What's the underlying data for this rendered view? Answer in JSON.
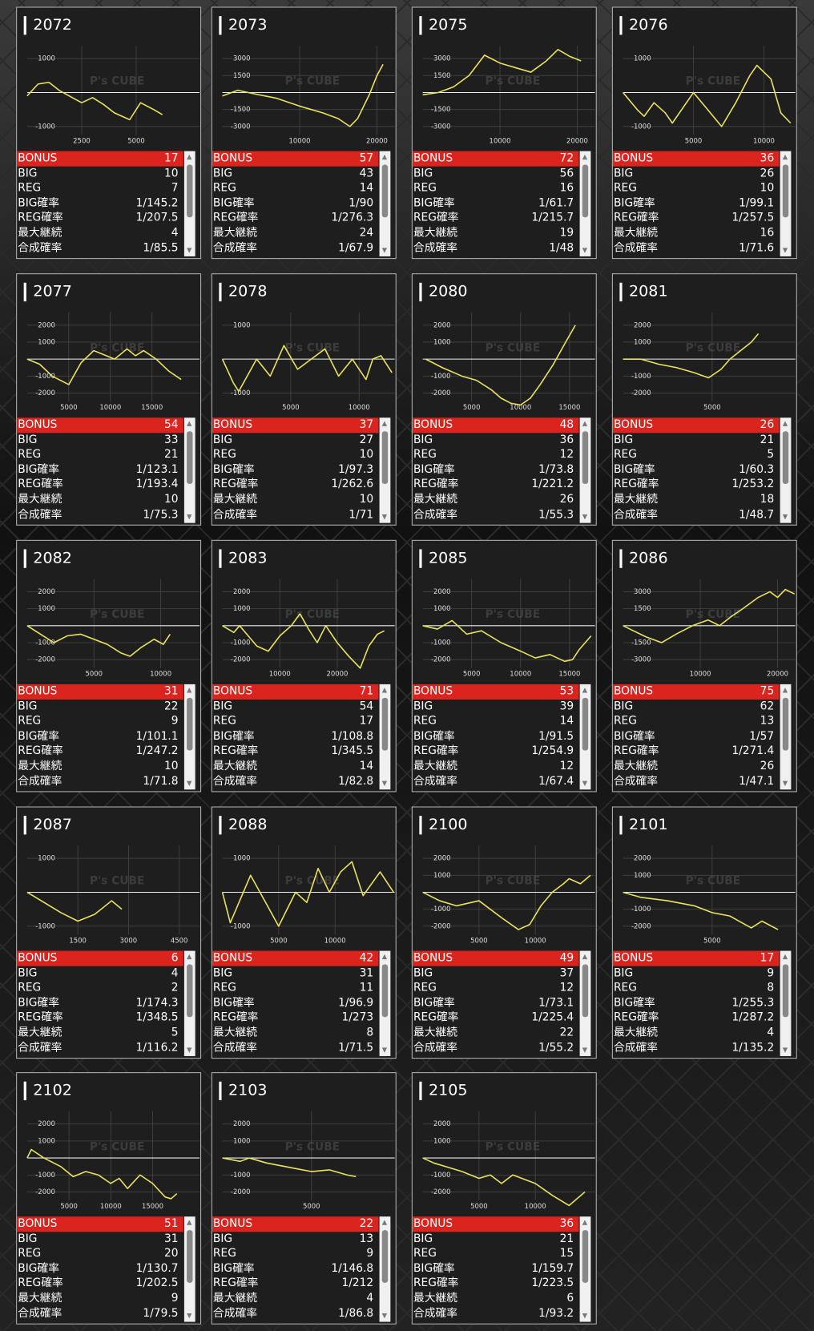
{
  "watermark": "P's CUBE",
  "row_labels": [
    "BONUS",
    "BIG",
    "REG",
    "BIG確率",
    "REG確率",
    "最大継続",
    "合成確率"
  ],
  "cards": [
    {
      "id": "2072",
      "chart": {
        "type": "line",
        "xlim": [
          0,
          7900
        ],
        "ylim": [
          -1250,
          1375
        ],
        "xticks": [
          2500,
          5000
        ],
        "yticks": [
          1000,
          -1000
        ],
        "x": [
          0,
          500,
          1000,
          1500,
          2500,
          3000,
          3500,
          4000,
          4700,
          5200,
          5800,
          6200
        ],
        "values": [
          -100,
          250,
          300,
          50,
          -300,
          -150,
          -350,
          -600,
          -800,
          -300,
          -500,
          -650
        ]
      },
      "stats": [
        17,
        10,
        7,
        "1/145.2",
        "1/207.5",
        4,
        "1/85.5"
      ]
    },
    {
      "id": "2073",
      "chart": {
        "type": "line",
        "xlim": [
          0,
          22300
        ],
        "ylim": [
          -3750,
          4125
        ],
        "xticks": [
          10000,
          20000
        ],
        "yticks": [
          3000,
          1500,
          -1500,
          -3000
        ],
        "x": [
          0,
          2000,
          4000,
          7000,
          10000,
          13000,
          15000,
          16500,
          17500,
          19000,
          20000,
          20800
        ],
        "values": [
          -300,
          200,
          -100,
          -500,
          -1200,
          -1800,
          -2300,
          -3000,
          -2300,
          -200,
          1500,
          2500
        ]
      },
      "stats": [
        57,
        43,
        14,
        "1/90",
        "1/276.3",
        24,
        "1/67.9"
      ]
    },
    {
      "id": "2075",
      "chart": {
        "type": "line",
        "xlim": [
          0,
          22300
        ],
        "ylim": [
          -3750,
          4125
        ],
        "xticks": [
          10000,
          20000
        ],
        "yticks": [
          3000,
          1500,
          -1500,
          -3000
        ],
        "x": [
          0,
          2000,
          4000,
          6000,
          8000,
          10000,
          12000,
          14000,
          16000,
          17500,
          19000,
          20500
        ],
        "values": [
          -200,
          0,
          500,
          1500,
          3300,
          2600,
          2200,
          1800,
          2800,
          3800,
          3200,
          2800
        ]
      },
      "stats": [
        72,
        56,
        16,
        "1/61.7",
        "1/215.7",
        19,
        "1/48"
      ]
    },
    {
      "id": "2076",
      "chart": {
        "type": "line",
        "xlim": [
          0,
          12230
        ],
        "ylim": [
          -1250,
          1375
        ],
        "xticks": [
          5000,
          10000
        ],
        "yticks": [
          1000,
          -1000
        ],
        "x": [
          0,
          1000,
          1500,
          2200,
          3000,
          3500,
          5000,
          6000,
          7000,
          8000,
          9000,
          9500,
          10500,
          11200,
          11900
        ],
        "values": [
          0,
          -500,
          -700,
          -300,
          -600,
          -900,
          0,
          -500,
          -1000,
          -300,
          500,
          800,
          400,
          -600,
          -900
        ]
      },
      "stats": [
        36,
        26,
        10,
        "1/99.1",
        "1/257.5",
        16,
        "1/71.6"
      ]
    },
    {
      "id": "2077",
      "chart": {
        "type": "line",
        "xlim": [
          0,
          20700
        ],
        "ylim": [
          -2500,
          2750
        ],
        "xticks": [
          5000,
          10000,
          15000
        ],
        "yticks": [
          2000,
          1000,
          -1000,
          -2000
        ],
        "x": [
          0,
          1500,
          3000,
          5000,
          6500,
          8000,
          9000,
          10500,
          12000,
          13000,
          14000,
          15500,
          17000,
          18500
        ],
        "values": [
          0,
          -300,
          -1000,
          -1500,
          -200,
          500,
          300,
          0,
          600,
          200,
          500,
          0,
          -700,
          -1200
        ]
      },
      "stats": [
        54,
        33,
        21,
        "1/123.1",
        "1/193.4",
        10,
        "1/75.3"
      ]
    },
    {
      "id": "2078",
      "chart": {
        "type": "line",
        "xlim": [
          0,
          12600
        ],
        "ylim": [
          -1250,
          1375
        ],
        "xticks": [
          5000,
          10000
        ],
        "yticks": [
          1000,
          -1000
        ],
        "x": [
          0,
          800,
          1200,
          2500,
          3500,
          4500,
          5500,
          6500,
          7500,
          8500,
          9500,
          10500,
          11000,
          11600,
          12400
        ],
        "values": [
          0,
          -700,
          -950,
          0,
          -500,
          400,
          -300,
          0,
          300,
          -500,
          0,
          -600,
          0,
          100,
          -400
        ]
      },
      "stats": [
        37,
        27,
        10,
        "1/97.3",
        "1/262.6",
        10,
        "1/71"
      ]
    },
    {
      "id": "2080",
      "chart": {
        "type": "line",
        "xlim": [
          0,
          17600
        ],
        "ylim": [
          -2500,
          2750
        ],
        "xticks": [
          5000,
          10000,
          15000
        ],
        "yticks": [
          2000,
          1000,
          -1000,
          -2000
        ],
        "x": [
          300,
          2000,
          4000,
          5500,
          7000,
          8000,
          9000,
          10000,
          11000,
          12000,
          13300,
          14600,
          15600
        ],
        "values": [
          0,
          -500,
          -1000,
          -1250,
          -1800,
          -2300,
          -2600,
          -2700,
          -2300,
          -1500,
          -350,
          1000,
          2000
        ]
      },
      "stats": [
        48,
        36,
        12,
        "1/73.8",
        "1/221.2",
        26,
        "1/55.3"
      ]
    },
    {
      "id": "2081",
      "chart": {
        "type": "line",
        "xlim": [
          0,
          9670
        ],
        "ylim": [
          -2500,
          2750
        ],
        "xticks": [
          5000
        ],
        "yticks": [
          2000,
          1000,
          -1000,
          -2000
        ],
        "x": [
          0,
          1000,
          2000,
          3000,
          4000,
          4800,
          5500,
          6000,
          6600,
          7200,
          7600
        ],
        "values": [
          0,
          0,
          -300,
          -500,
          -800,
          -1100,
          -600,
          0,
          500,
          1000,
          1500
        ]
      },
      "stats": [
        26,
        21,
        5,
        "1/60.3",
        "1/253.2",
        18,
        "1/48.7"
      ]
    },
    {
      "id": "2082",
      "chart": {
        "type": "line",
        "xlim": [
          0,
          12900
        ],
        "ylim": [
          -2500,
          2750
        ],
        "xticks": [
          5000,
          10000
        ],
        "yticks": [
          2000,
          1000,
          -1000,
          -2000
        ],
        "x": [
          0,
          1000,
          2000,
          3000,
          4000,
          5000,
          6000,
          7000,
          7700,
          8500,
          9500,
          10200,
          10700
        ],
        "values": [
          0,
          -500,
          -1000,
          -600,
          -500,
          -800,
          -1100,
          -1600,
          -1800,
          -1300,
          -800,
          -1100,
          -500
        ]
      },
      "stats": [
        31,
        22,
        9,
        "1/101.1",
        "1/247.2",
        10,
        "1/71.8"
      ]
    },
    {
      "id": "2083",
      "chart": {
        "type": "line",
        "xlim": [
          0,
          30000
        ],
        "ylim": [
          -2500,
          2750
        ],
        "xticks": [
          10000,
          20000
        ],
        "yticks": [
          2000,
          1000,
          -1000,
          -2000
        ],
        "x": [
          0,
          2000,
          3000,
          5000,
          6000,
          8000,
          10000,
          12000,
          13500,
          15000,
          16500,
          18000,
          20000,
          22000,
          24000,
          25500,
          27000,
          28200
        ],
        "values": [
          0,
          -400,
          0,
          -800,
          -1200,
          -1500,
          -600,
          0,
          700,
          -200,
          -1000,
          0,
          -1000,
          -1800,
          -2500,
          -1200,
          -500,
          -300
        ]
      },
      "stats": [
        71,
        54,
        17,
        "1/108.8",
        "1/345.5",
        14,
        "1/82.8"
      ]
    },
    {
      "id": "2085",
      "chart": {
        "type": "line",
        "xlim": [
          0,
          17600
        ],
        "ylim": [
          -2500,
          2750
        ],
        "xticks": [
          5000,
          10000,
          15000
        ],
        "yticks": [
          2000,
          1000,
          -1000,
          -2000
        ],
        "x": [
          0,
          1500,
          3000,
          4500,
          6000,
          8000,
          10000,
          11500,
          13000,
          14500,
          15300,
          16000,
          17200
        ],
        "values": [
          0,
          -200,
          300,
          -500,
          -300,
          -1000,
          -1500,
          -1900,
          -1700,
          -2100,
          -2000,
          -1400,
          -600
        ]
      },
      "stats": [
        53,
        39,
        14,
        "1/91.5",
        "1/254.9",
        12,
        "1/67.4"
      ]
    },
    {
      "id": "2086",
      "chart": {
        "type": "line",
        "xlim": [
          0,
          22300
        ],
        "ylim": [
          -3750,
          4125
        ],
        "xticks": [
          10000,
          20000
        ],
        "yticks": [
          3000,
          1500,
          -1500,
          -3000
        ],
        "x": [
          0,
          1500,
          3000,
          5000,
          7000,
          9000,
          11000,
          12500,
          14000,
          15500,
          17500,
          19000,
          20000,
          21000,
          22200
        ],
        "values": [
          0,
          -500,
          -1000,
          -1500,
          -700,
          0,
          500,
          0,
          800,
          1500,
          2500,
          3000,
          2500,
          3200,
          2800
        ]
      },
      "stats": [
        75,
        62,
        13,
        "1/57",
        "1/271.4",
        26,
        "1/47.1"
      ]
    },
    {
      "id": "2087",
      "chart": {
        "type": "line",
        "xlim": [
          0,
          5100
        ],
        "ylim": [
          -1250,
          1375
        ],
        "xticks": [
          1500,
          3000,
          4500
        ],
        "yticks": [
          1000,
          -1000
        ],
        "x": [
          0,
          500,
          1000,
          1500,
          2000,
          2500,
          2800
        ],
        "values": [
          0,
          -300,
          -600,
          -850,
          -650,
          -250,
          -500
        ]
      },
      "stats": [
        6,
        4,
        2,
        "1/174.3",
        "1/348.5",
        5,
        "1/116.2"
      ]
    },
    {
      "id": "2088",
      "chart": {
        "type": "line",
        "xlim": [
          0,
          15300
        ],
        "ylim": [
          -1250,
          1375
        ],
        "xticks": [
          5000,
          10000
        ],
        "yticks": [
          1000,
          -1000
        ],
        "x": [
          0,
          700,
          2500,
          4000,
          5000,
          6500,
          7500,
          8500,
          9500,
          10500,
          11500,
          12500,
          14000,
          15200
        ],
        "values": [
          0,
          -900,
          500,
          -400,
          -1000,
          0,
          -300,
          700,
          0,
          600,
          900,
          -100,
          600,
          0
        ]
      },
      "stats": [
        42,
        31,
        11,
        "1/96.9",
        "1/273",
        8,
        "1/71.5"
      ]
    },
    {
      "id": "2100",
      "chart": {
        "type": "line",
        "xlim": [
          0,
          15300
        ],
        "ylim": [
          -2500,
          2750
        ],
        "xticks": [
          5000,
          10000
        ],
        "yticks": [
          2000,
          1000,
          -1000,
          -2000
        ],
        "x": [
          0,
          1500,
          3000,
          5000,
          7000,
          8500,
          9500,
          10500,
          11500,
          12500,
          13000,
          14000,
          14900
        ],
        "values": [
          0,
          -500,
          -800,
          -500,
          -1500,
          -2200,
          -1900,
          -800,
          0,
          500,
          800,
          500,
          1000
        ]
      },
      "stats": [
        49,
        37,
        12,
        "1/73.1",
        "1/225.4",
        22,
        "1/55.2"
      ]
    },
    {
      "id": "2101",
      "chart": {
        "type": "line",
        "xlim": [
          0,
          9670
        ],
        "ylim": [
          -2500,
          2750
        ],
        "xticks": [
          5000
        ],
        "yticks": [
          2000,
          1000,
          -1000,
          -2000
        ],
        "x": [
          0,
          1000,
          2500,
          4000,
          5000,
          6000,
          6500,
          7200,
          7800,
          8700
        ],
        "values": [
          0,
          -300,
          -500,
          -800,
          -1200,
          -1400,
          -1700,
          -2100,
          -1700,
          -2200
        ]
      },
      "stats": [
        17,
        9,
        8,
        "1/255.3",
        "1/287.2",
        4,
        "1/135.2"
      ]
    },
    {
      "id": "2102",
      "chart": {
        "type": "line",
        "xlim": [
          0,
          20600
        ],
        "ylim": [
          -2500,
          2750
        ],
        "xticks": [
          5000,
          10000,
          15000
        ],
        "yticks": [
          2000,
          1000,
          -1000,
          -2000
        ],
        "x": [
          0,
          500,
          2000,
          4000,
          5500,
          7000,
          8500,
          10000,
          11000,
          12000,
          13500,
          15000,
          16500,
          17200,
          17900
        ],
        "values": [
          0,
          500,
          0,
          -500,
          -1100,
          -800,
          -1000,
          -1500,
          -1200,
          -1800,
          -1000,
          -1500,
          -2300,
          -2400,
          -2100
        ]
      },
      "stats": [
        51,
        31,
        20,
        "1/130.7",
        "1/202.5",
        9,
        "1/79.5"
      ]
    },
    {
      "id": "2103",
      "chart": {
        "type": "line",
        "xlim": [
          0,
          9670
        ],
        "ylim": [
          -2500,
          2750
        ],
        "xticks": [
          5000
        ],
        "yticks": [
          2000,
          1000,
          -1000,
          -2000
        ],
        "x": [
          0,
          1000,
          1500,
          2500,
          3500,
          4500,
          5000,
          6000,
          7000,
          7500
        ],
        "values": [
          0,
          -200,
          0,
          -300,
          -500,
          -700,
          -800,
          -700,
          -1000,
          -1100
        ]
      },
      "stats": [
        22,
        13,
        9,
        "1/146.8",
        "1/212",
        4,
        "1/86.8"
      ]
    },
    {
      "id": "2105",
      "chart": {
        "type": "line",
        "xlim": [
          0,
          15300
        ],
        "ylim": [
          -2500,
          2750
        ],
        "xticks": [
          5000,
          10000
        ],
        "yticks": [
          2000,
          1000,
          -1000,
          -2000
        ],
        "x": [
          0,
          1000,
          2000,
          3500,
          5000,
          6000,
          7000,
          8000,
          10000,
          11500,
          13000,
          14400
        ],
        "values": [
          0,
          -300,
          -500,
          -800,
          -1200,
          -1000,
          -1500,
          -1000,
          -1500,
          -2200,
          -2800,
          -2000
        ]
      },
      "stats": [
        36,
        21,
        15,
        "1/159.7",
        "1/223.5",
        6,
        "1/93.2"
      ]
    }
  ]
}
